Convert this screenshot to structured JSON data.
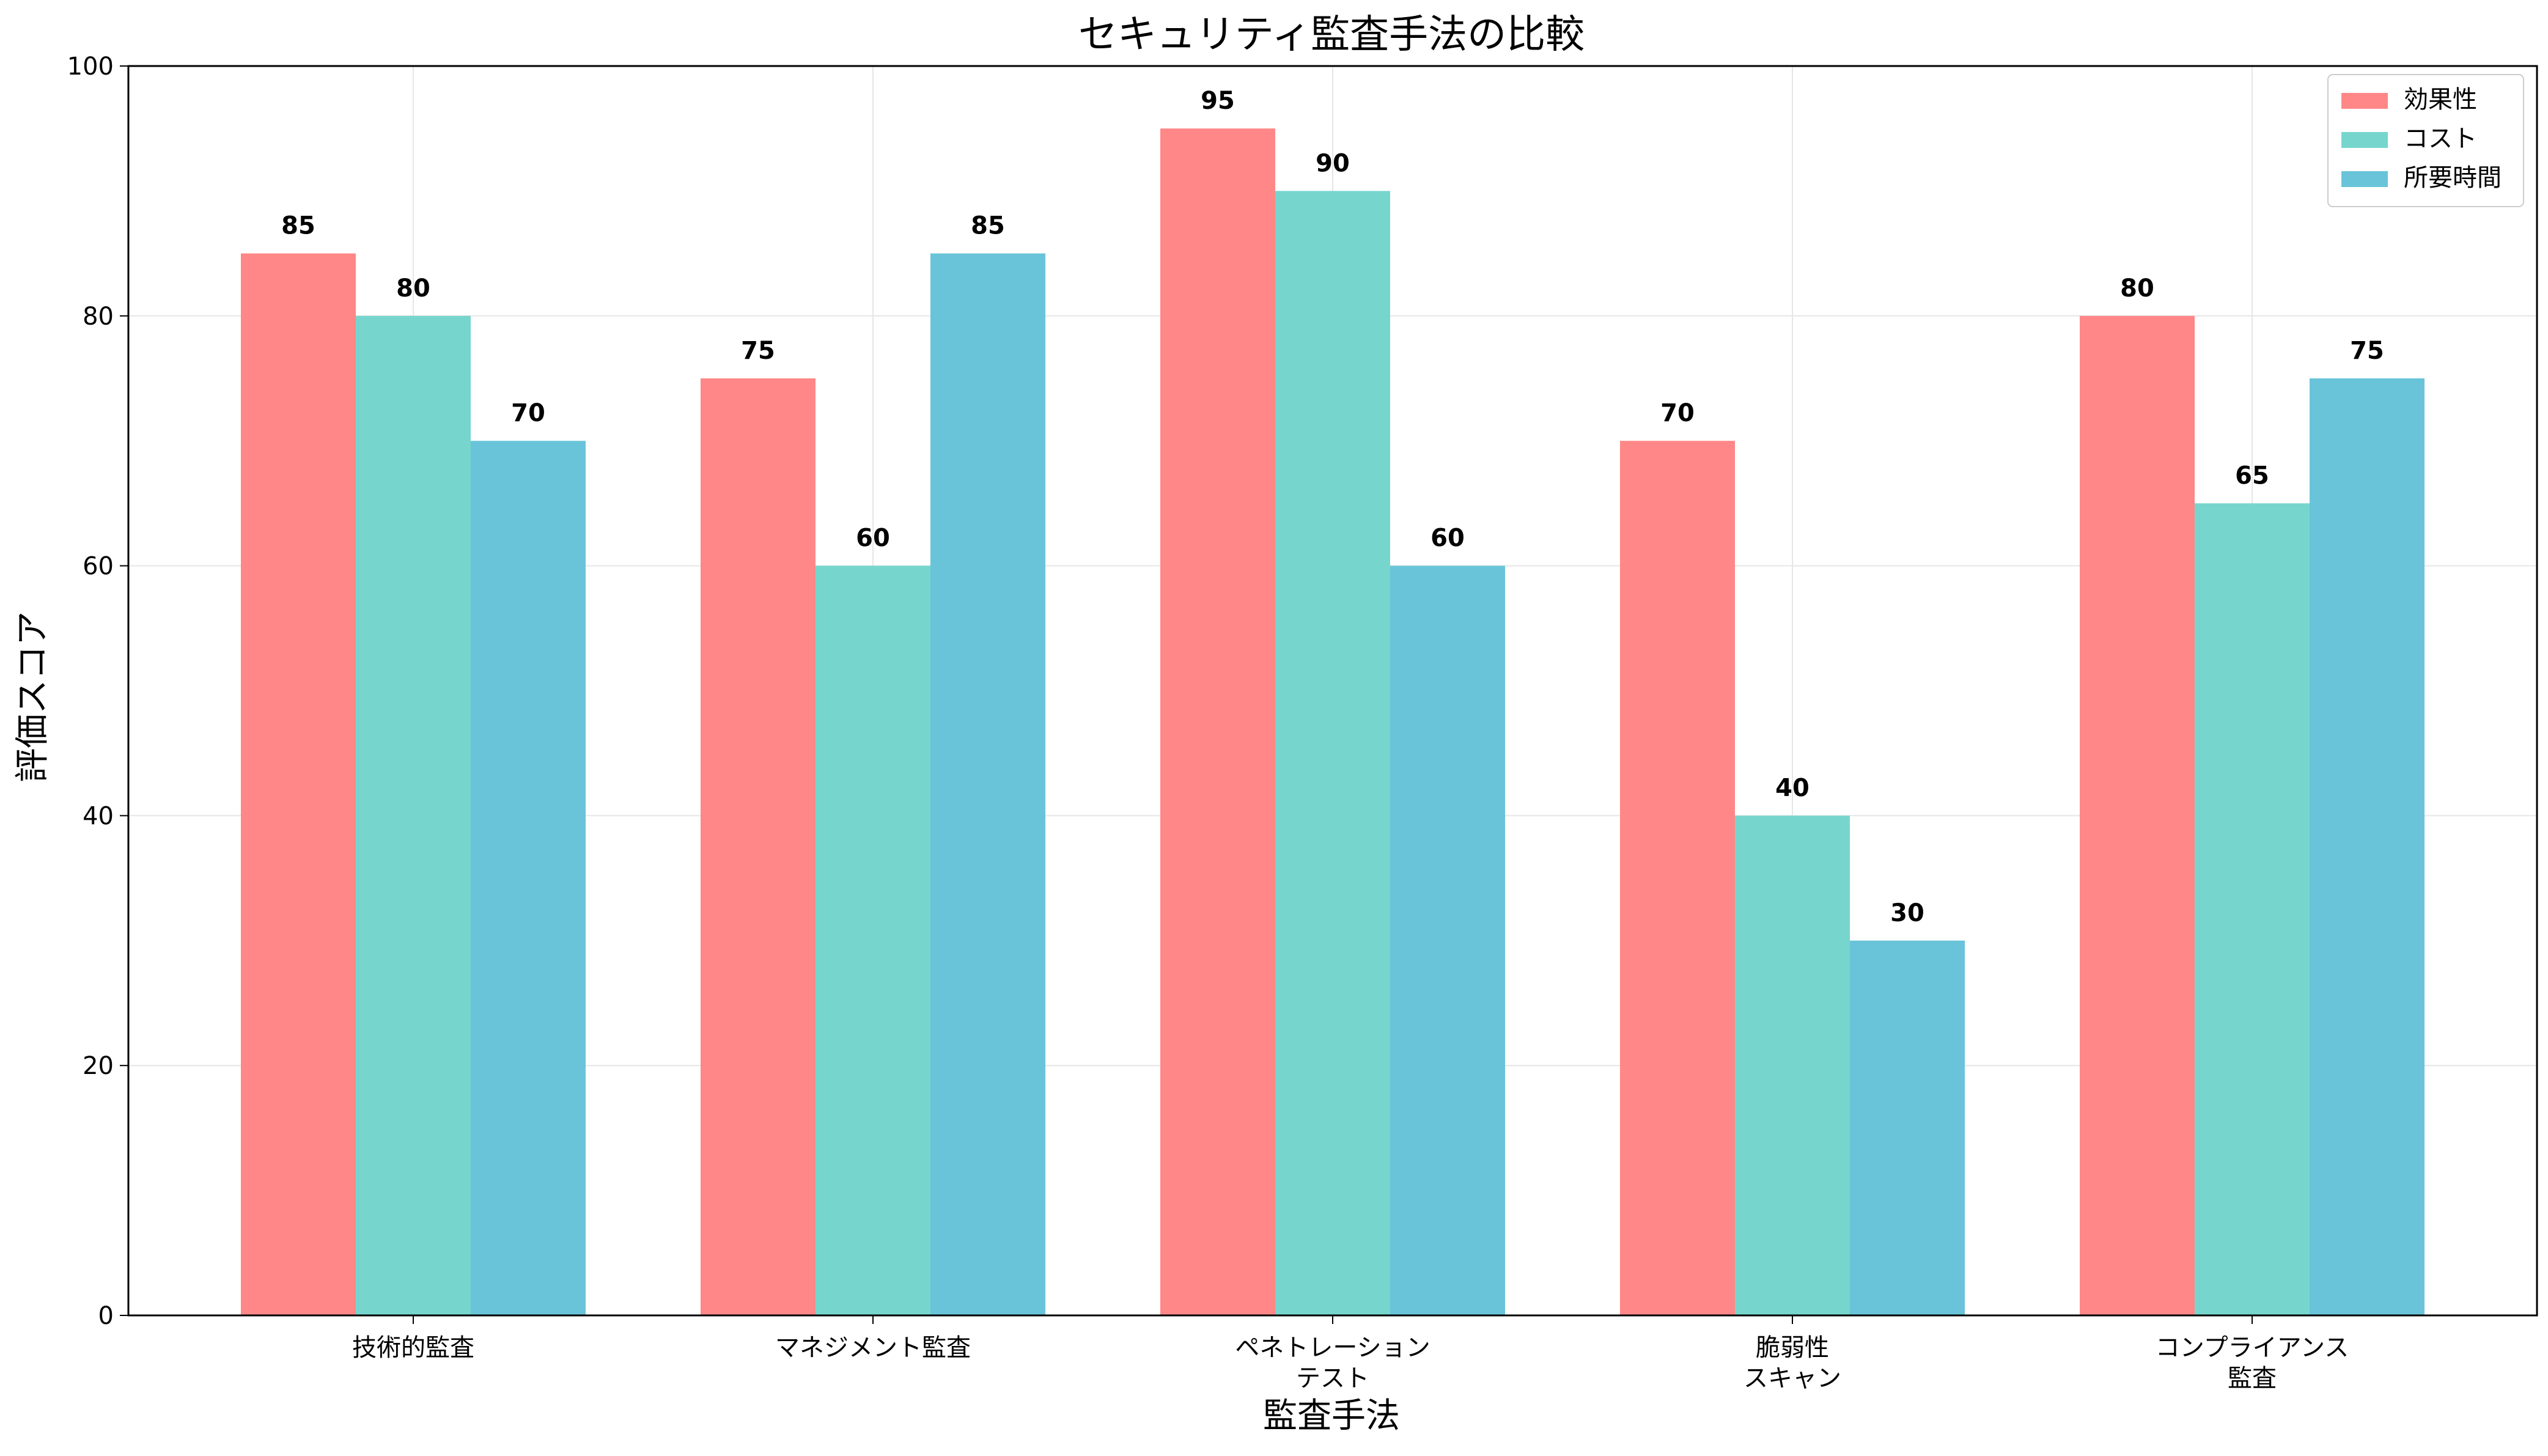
{
  "chart_data": {
    "type": "bar",
    "title": "セキュリティ監査手法の比較",
    "xlabel": "監査手法",
    "ylabel": "評価スコア",
    "ylim": [
      0,
      100
    ],
    "yticks": [
      0,
      20,
      40,
      60,
      80,
      100
    ],
    "grid": true,
    "legend_position": "top-right",
    "categories": [
      [
        "技術的監査"
      ],
      [
        "マネジメント監査"
      ],
      [
        "ペネトレーション",
        "テスト"
      ],
      [
        "脆弱性",
        "スキャン"
      ],
      [
        "コンプライアンス",
        "監査"
      ]
    ],
    "series": [
      {
        "name": "効果性",
        "color": "#FF8787",
        "values": [
          85,
          75,
          95,
          70,
          80
        ]
      },
      {
        "name": "コスト",
        "color": "#76D6CD",
        "values": [
          80,
          60,
          90,
          40,
          65
        ]
      },
      {
        "name": "所要時間",
        "color": "#69C4D9",
        "values": [
          70,
          85,
          60,
          30,
          75
        ]
      }
    ]
  }
}
